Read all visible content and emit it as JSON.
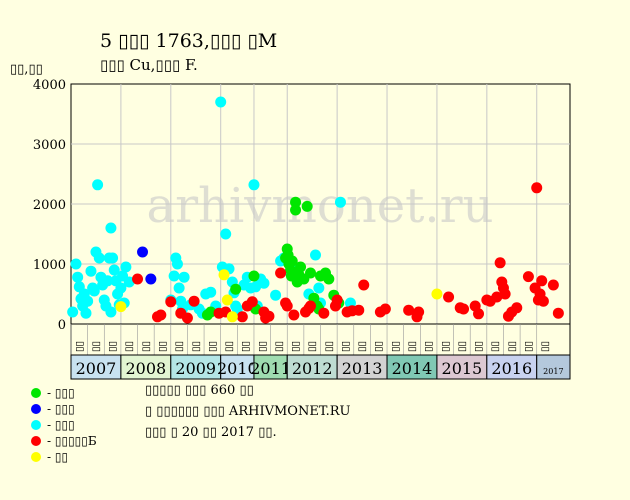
{
  "title_line1": "5 ▯▯▯ 1763,▯▯▯ ▯M",
  "title_line2": "▯▯▯ Cu,▯▯▯ F.",
  "y_unit": "▯▯,▯▯",
  "watermark": "arhivmonet.ru",
  "colors": {
    "background": "#ffffe1",
    "plot_bg": "#ffffe1",
    "grid": "#c8c8c8",
    "green": "#00e600",
    "blue": "#0000ff",
    "cyan": "#00ffff",
    "red": "#ff0000",
    "yellow": "#ffff00"
  },
  "legend": [
    {
      "label": "- ▯▯▯",
      "color": "#00e600"
    },
    {
      "label": "- ▯▯▯",
      "color": "#0000ff"
    },
    {
      "label": "- ▯▯▯",
      "color": "#00ffff"
    },
    {
      "label": "- ▯▯▯▯▯Б",
      "color": "#ff0000"
    },
    {
      "label": "- ▯▯",
      "color": "#ffff00"
    }
  ],
  "notes": [
    "▯▯▯▯▯ ▯▯▯ 660 ▯▯",
    "▯ ▯▯▯▯▯▯ ▯▯▯ ARHIVMONET.RU",
    "▯▯▯ ▯ 20 ▯▯ 2017 ▯▯."
  ],
  "chart_data": {
    "type": "scatter",
    "ylim": [
      0,
      4000
    ],
    "yticks": [
      0,
      1000,
      2000,
      3000,
      4000
    ],
    "xlim": [
      0,
      30
    ],
    "grid": true,
    "years": [
      {
        "label": "2007",
        "start": 0,
        "end": 3,
        "color": "#c8e2f0"
      },
      {
        "label": "2008",
        "start": 3,
        "end": 6,
        "color": "#e2f5d2"
      },
      {
        "label": "2009",
        "start": 6,
        "end": 9,
        "color": "#b4e6e6"
      },
      {
        "label": "2010",
        "start": 9,
        "end": 11,
        "color": "#c8e2f0"
      },
      {
        "label": "2011",
        "start": 11,
        "end": 13,
        "color": "#9fdcb0"
      },
      {
        "label": "2012",
        "start": 13,
        "end": 16,
        "color": "#bedcd2"
      },
      {
        "label": "2013",
        "start": 16,
        "end": 19,
        "color": "#d2d2d2"
      },
      {
        "label": "2014",
        "start": 19,
        "end": 22,
        "color": "#80c8b4"
      },
      {
        "label": "2015",
        "start": 22,
        "end": 25,
        "color": "#dcc8d2"
      },
      {
        "label": "2016",
        "start": 25,
        "end": 28,
        "color": "#c8d2f0"
      },
      {
        "label": "2017",
        "start": 28,
        "end": 30,
        "color": "#b4c8dc"
      }
    ],
    "sublabels": [
      "▯▯",
      "▯▯",
      "▯▯",
      "▯▯",
      "▯▯",
      "▯▯",
      "▯▯",
      "▯▯",
      "▯▯",
      "▯▯",
      "▯▯",
      "▯▯",
      "▯▯",
      "▯▯",
      "▯▯",
      "▯▯",
      "▯▯",
      "▯▯",
      "▯▯",
      "▯▯",
      "▯▯",
      "▯▯",
      "▯▯",
      "▯▯",
      "▯▯",
      "▯▯",
      "▯▯",
      "▯▯",
      "▯▯"
    ],
    "series": [
      {
        "color": "#00ffff",
        "points": [
          [
            0.1,
            200
          ],
          [
            0.3,
            1000
          ],
          [
            0.4,
            780
          ],
          [
            0.5,
            620
          ],
          [
            0.6,
            420
          ],
          [
            0.7,
            300
          ],
          [
            0.8,
            500
          ],
          [
            0.9,
            180
          ],
          [
            1.0,
            380
          ],
          [
            1.2,
            880
          ],
          [
            1.3,
            600
          ],
          [
            1.5,
            1200
          ],
          [
            1.6,
            2320
          ],
          [
            1.7,
            1100
          ],
          [
            1.8,
            780
          ],
          [
            1.9,
            650
          ],
          [
            2.0,
            400
          ],
          [
            2.1,
            300
          ],
          [
            2.2,
            720
          ],
          [
            2.3,
            1100
          ],
          [
            2.4,
            1600
          ],
          [
            2.5,
            1100
          ],
          [
            2.6,
            900
          ],
          [
            2.7,
            720
          ],
          [
            2.8,
            500
          ],
          [
            2.9,
            320
          ],
          [
            3.0,
            600
          ],
          [
            2.4,
            200
          ],
          [
            1.4,
            550
          ],
          [
            3.1,
            800
          ],
          [
            3.2,
            350
          ],
          [
            3.3,
            950
          ],
          [
            3.5,
            700
          ],
          [
            6.0,
            400
          ],
          [
            6.2,
            800
          ],
          [
            6.3,
            1100
          ],
          [
            6.4,
            1000
          ],
          [
            6.5,
            600
          ],
          [
            6.6,
            380
          ],
          [
            6.7,
            250
          ],
          [
            6.8,
            780
          ],
          [
            7.2,
            320
          ],
          [
            7.7,
            250
          ],
          [
            7.9,
            180
          ],
          [
            8.1,
            500
          ],
          [
            8.4,
            530
          ],
          [
            8.7,
            300
          ],
          [
            9.0,
            3700
          ],
          [
            9.1,
            950
          ],
          [
            9.3,
            1500
          ],
          [
            9.5,
            920
          ],
          [
            9.7,
            700
          ],
          [
            9.8,
            520
          ],
          [
            9.9,
            300
          ],
          [
            10.0,
            250
          ],
          [
            10.6,
            780
          ],
          [
            11.0,
            2320
          ],
          [
            11.1,
            620
          ],
          [
            11.2,
            300
          ],
          [
            11.4,
            750
          ],
          [
            12.3,
            480
          ],
          [
            12.6,
            1050
          ],
          [
            12.8,
            1100
          ],
          [
            13.2,
            850
          ],
          [
            13.4,
            920
          ],
          [
            14.3,
            500
          ],
          [
            14.7,
            1150
          ],
          [
            14.9,
            600
          ],
          [
            15.0,
            350
          ],
          [
            16.2,
            2030
          ],
          [
            16.8,
            350
          ],
          [
            10.4,
            650
          ],
          [
            10.8,
            600
          ],
          [
            11.6,
            680
          ]
        ]
      },
      {
        "color": "#00e600",
        "points": [
          [
            8.2,
            150
          ],
          [
            8.4,
            200
          ],
          [
            9.9,
            580
          ],
          [
            11.0,
            800
          ],
          [
            11.1,
            250
          ],
          [
            12.9,
            1100
          ],
          [
            13.0,
            1250
          ],
          [
            13.05,
            1150
          ],
          [
            13.1,
            1000
          ],
          [
            13.2,
            900
          ],
          [
            13.25,
            800
          ],
          [
            13.3,
            1050
          ],
          [
            13.5,
            1900
          ],
          [
            13.5,
            2030
          ],
          [
            13.6,
            700
          ],
          [
            13.7,
            820
          ],
          [
            13.8,
            950
          ],
          [
            14.0,
            750
          ],
          [
            14.2,
            1960
          ],
          [
            14.4,
            850
          ],
          [
            14.6,
            430
          ],
          [
            14.8,
            300
          ],
          [
            14.9,
            250
          ],
          [
            15.0,
            800
          ],
          [
            15.3,
            850
          ],
          [
            15.5,
            750
          ],
          [
            15.8,
            480
          ],
          [
            16.1,
            350
          ]
        ]
      },
      {
        "color": "#0000ff",
        "points": [
          [
            4.3,
            1200
          ],
          [
            4.8,
            750
          ]
        ]
      },
      {
        "color": "#ff0000",
        "points": [
          [
            4.0,
            750
          ],
          [
            5.2,
            120
          ],
          [
            5.4,
            150
          ],
          [
            6.0,
            370
          ],
          [
            6.6,
            180
          ],
          [
            7.0,
            100
          ],
          [
            7.4,
            380
          ],
          [
            8.9,
            180
          ],
          [
            9.3,
            200
          ],
          [
            10.3,
            120
          ],
          [
            10.6,
            300
          ],
          [
            10.9,
            370
          ],
          [
            11.6,
            200
          ],
          [
            11.7,
            100
          ],
          [
            11.9,
            130
          ],
          [
            12.6,
            850
          ],
          [
            12.9,
            350
          ],
          [
            13.0,
            300
          ],
          [
            13.4,
            150
          ],
          [
            14.1,
            200
          ],
          [
            14.3,
            260
          ],
          [
            14.4,
            300
          ],
          [
            15.2,
            180
          ],
          [
            15.9,
            300
          ],
          [
            16.0,
            400
          ],
          [
            16.6,
            200
          ],
          [
            16.9,
            220
          ],
          [
            17.3,
            230
          ],
          [
            17.6,
            650
          ],
          [
            18.6,
            200
          ],
          [
            18.9,
            250
          ],
          [
            20.3,
            230
          ],
          [
            20.8,
            120
          ],
          [
            20.9,
            200
          ],
          [
            22.7,
            450
          ],
          [
            23.4,
            270
          ],
          [
            23.6,
            250
          ],
          [
            24.3,
            300
          ],
          [
            24.5,
            170
          ],
          [
            25.0,
            400
          ],
          [
            25.2,
            380
          ],
          [
            25.6,
            450
          ],
          [
            25.8,
            1020
          ],
          [
            25.9,
            700
          ],
          [
            26.0,
            600
          ],
          [
            26.1,
            500
          ],
          [
            26.3,
            130
          ],
          [
            26.5,
            200
          ],
          [
            26.8,
            270
          ],
          [
            27.5,
            790
          ],
          [
            27.9,
            600
          ],
          [
            28.0,
            2270
          ],
          [
            28.1,
            400
          ],
          [
            28.2,
            500
          ],
          [
            28.3,
            720
          ],
          [
            28.4,
            380
          ],
          [
            29.0,
            650
          ],
          [
            29.3,
            180
          ]
        ]
      },
      {
        "color": "#ffff00",
        "points": [
          [
            3.0,
            290
          ],
          [
            9.2,
            820
          ],
          [
            9.4,
            400
          ],
          [
            9.7,
            120
          ],
          [
            22.0,
            500
          ]
        ]
      }
    ]
  }
}
